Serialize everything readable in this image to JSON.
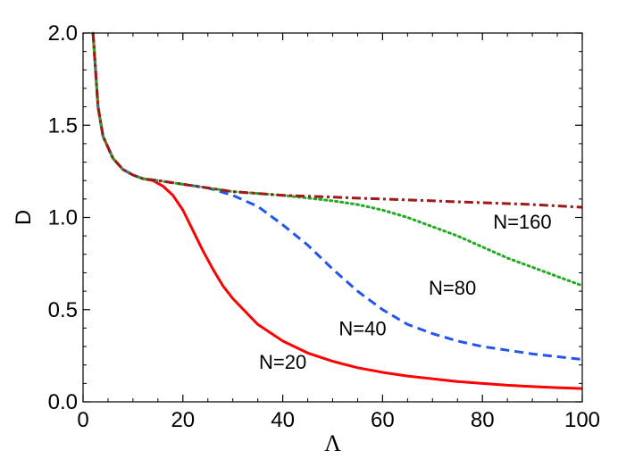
{
  "chart_data": {
    "type": "line",
    "xlabel": "Λ",
    "ylabel": "D",
    "xlim": [
      0,
      100
    ],
    "ylim": [
      0.0,
      2.0
    ],
    "x_ticks": [
      "0",
      "20",
      "40",
      "60",
      "80",
      "100"
    ],
    "y_ticks": [
      "0.0",
      "0.5",
      "1.0",
      "1.5",
      "2.0"
    ],
    "grid": false,
    "series": [
      {
        "name": "N=20",
        "color": "#ff0000",
        "style": "solid",
        "x": [
          2,
          3,
          4,
          6,
          8,
          10,
          12,
          14,
          16,
          18,
          20,
          22,
          24,
          26,
          28,
          30,
          35,
          40,
          45,
          50,
          55,
          60,
          65,
          70,
          75,
          80,
          85,
          90,
          95,
          100
        ],
        "y": [
          2.0,
          1.6,
          1.44,
          1.32,
          1.26,
          1.23,
          1.21,
          1.2,
          1.17,
          1.12,
          1.04,
          0.93,
          0.82,
          0.72,
          0.63,
          0.56,
          0.42,
          0.33,
          0.265,
          0.22,
          0.185,
          0.16,
          0.14,
          0.125,
          0.11,
          0.1,
          0.09,
          0.083,
          0.077,
          0.072
        ]
      },
      {
        "name": "N=40",
        "color": "#2255ee",
        "style": "dashed",
        "x": [
          2,
          3,
          4,
          6,
          8,
          10,
          12,
          15,
          20,
          25,
          30,
          35,
          40,
          45,
          50,
          55,
          60,
          65,
          70,
          75,
          80,
          85,
          90,
          95,
          100
        ],
        "y": [
          2.0,
          1.6,
          1.44,
          1.32,
          1.26,
          1.23,
          1.21,
          1.2,
          1.18,
          1.16,
          1.12,
          1.06,
          0.96,
          0.85,
          0.72,
          0.6,
          0.5,
          0.42,
          0.37,
          0.33,
          0.3,
          0.28,
          0.26,
          0.245,
          0.23
        ]
      },
      {
        "name": "N=80",
        "color": "#22aa22",
        "style": "dotted",
        "x": [
          2,
          3,
          4,
          6,
          8,
          10,
          12,
          15,
          20,
          30,
          40,
          50,
          55,
          60,
          65,
          70,
          75,
          80,
          85,
          90,
          95,
          100
        ],
        "y": [
          2.0,
          1.6,
          1.44,
          1.32,
          1.26,
          1.23,
          1.21,
          1.2,
          1.18,
          1.14,
          1.12,
          1.09,
          1.07,
          1.04,
          1.0,
          0.95,
          0.9,
          0.84,
          0.78,
          0.73,
          0.68,
          0.63
        ]
      },
      {
        "name": "N=160",
        "color": "#a01818",
        "style": "dashdot",
        "x": [
          2,
          3,
          4,
          6,
          8,
          10,
          12,
          15,
          20,
          30,
          40,
          50,
          60,
          70,
          80,
          90,
          100
        ],
        "y": [
          2.0,
          1.6,
          1.44,
          1.32,
          1.26,
          1.23,
          1.21,
          1.2,
          1.18,
          1.14,
          1.12,
          1.11,
          1.1,
          1.09,
          1.08,
          1.07,
          1.055
        ]
      }
    ],
    "annotations": [
      {
        "text": "N=20",
        "x": 40,
        "y": 0.18
      },
      {
        "text": "N=40",
        "x": 56,
        "y": 0.36
      },
      {
        "text": "N=80",
        "x": 74,
        "y": 0.58
      },
      {
        "text": "N=160",
        "x": 88,
        "y": 0.94
      }
    ]
  }
}
